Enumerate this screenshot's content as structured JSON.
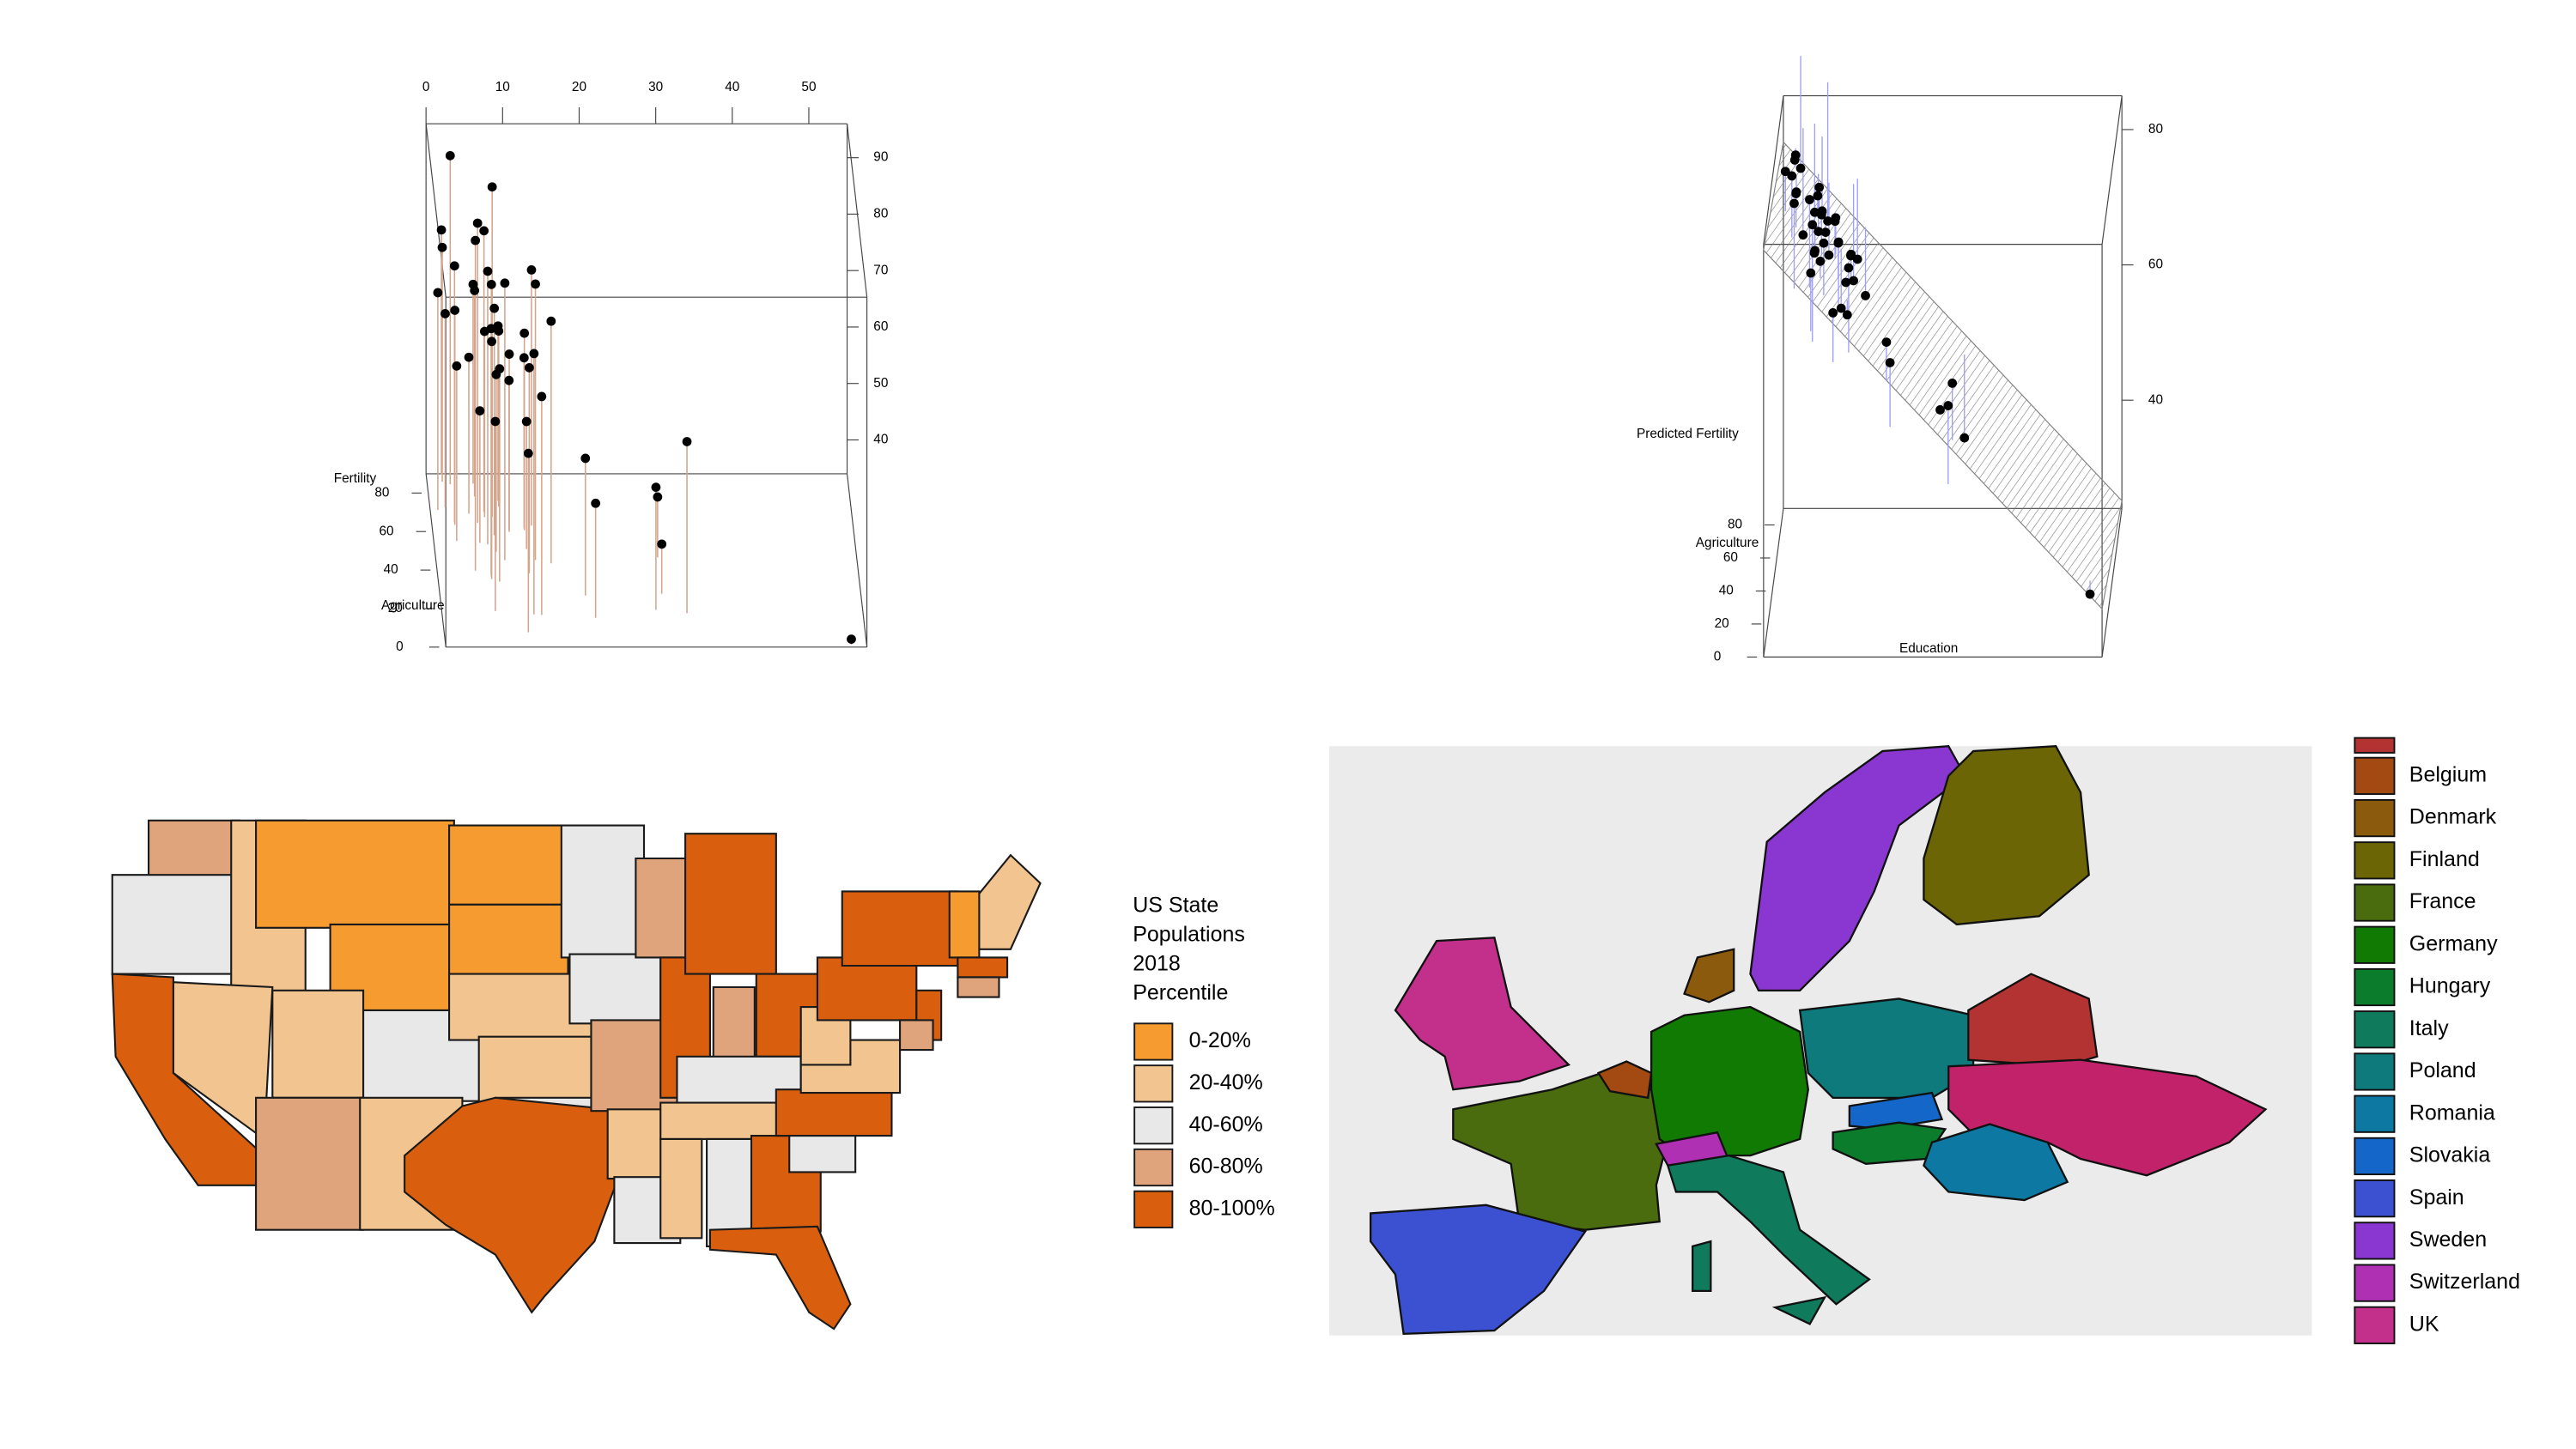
{
  "chart_data": [
    {
      "type": "scatter3d",
      "zlabel": "Fertility",
      "ylabel": "Agriculture",
      "x": [
        12,
        9,
        5,
        7,
        15,
        7,
        7,
        8,
        7,
        13,
        6,
        12,
        7,
        12,
        5,
        2,
        8,
        28,
        20,
        9,
        10,
        3,
        12,
        6,
        1,
        8,
        3,
        10,
        19,
        8,
        2,
        6,
        2,
        6,
        3,
        9,
        3,
        13,
        12,
        11,
        13,
        32,
        7,
        7,
        53,
        29,
        29
      ],
      "y": [
        17,
        45.1,
        39.7,
        36.5,
        43.5,
        35.3,
        70.2,
        67.8,
        53.3,
        45.2,
        64.5,
        62,
        67.5,
        60.7,
        69.3,
        72.6,
        34,
        19.4,
        15.2,
        73,
        59.8,
        55.1,
        50.9,
        54.1,
        71.2,
        58.1,
        63.5,
        60.8,
        26.8,
        49.5,
        85.9,
        84.9,
        89.7,
        78.2,
        64.9,
        75.9,
        84.6,
        63.1,
        38.4,
        7.7,
        16.7,
        17.6,
        37.6,
        18.7,
        1.2,
        46.6,
        27.7
      ],
      "z": [
        80.2,
        83.1,
        92.5,
        85.8,
        76.9,
        76.1,
        83.8,
        92.4,
        82.4,
        82.9,
        87.1,
        64.1,
        66.9,
        68.9,
        61.7,
        68.3,
        71.7,
        55.7,
        54.3,
        65.1,
        65.5,
        65,
        56.6,
        57.4,
        72.5,
        74.2,
        72,
        60.5,
        58.3,
        65.4,
        75.5,
        69.3,
        77.3,
        70.5,
        79.4,
        65,
        92.2,
        79.3,
        70.4,
        65.7,
        72.7,
        64.4,
        77.6,
        67.6,
        35,
        44.7,
        42.8
      ],
      "xlim": [
        0,
        55
      ],
      "ylim": [
        0,
        90
      ],
      "zlim": [
        34,
        96
      ],
      "xticks": [
        0,
        10,
        20,
        30,
        40,
        50
      ],
      "yticks": [
        0,
        20,
        40,
        60,
        80
      ],
      "zticks": [
        40,
        50,
        60,
        70,
        80,
        90
      ],
      "color": "#000000",
      "line_color": "#d4a48c"
    },
    {
      "type": "scatter3d-plane",
      "xlabel": "Education",
      "ylabel": "Agriculture",
      "zlabel": "Predicted Fertility",
      "x": [
        12,
        9,
        5,
        7,
        15,
        7,
        7,
        8,
        7,
        13,
        6,
        12,
        7,
        12,
        5,
        2,
        8,
        28,
        20,
        9,
        10,
        3,
        12,
        6,
        1,
        8,
        3,
        10,
        19,
        8,
        2,
        6,
        2,
        6,
        3,
        9,
        3,
        13,
        12,
        11,
        13,
        32,
        7,
        7,
        53,
        29,
        29
      ],
      "y": [
        17,
        45.1,
        39.7,
        36.5,
        43.5,
        35.3,
        70.2,
        67.8,
        53.3,
        45.2,
        64.5,
        62,
        67.5,
        60.7,
        69.3,
        72.6,
        34,
        19.4,
        15.2,
        73,
        59.8,
        55.1,
        50.9,
        54.1,
        71.2,
        58.1,
        63.5,
        60.8,
        26.8,
        49.5,
        85.9,
        84.9,
        89.7,
        78.2,
        64.9,
        75.9,
        84.6,
        63.1,
        38.4,
        7.7,
        16.7,
        17.6,
        37.6,
        18.7,
        1.2,
        46.6,
        27.7
      ],
      "z": [
        71.4,
        72.4,
        76.7,
        75,
        66.8,
        75.1,
        72.8,
        71.9,
        73.9,
        68.6,
        74,
        68.4,
        72.9,
        68.5,
        74.7,
        77.4,
        74.2,
        55.8,
        63.8,
        70.6,
        70.6,
        77.6,
        69.1,
        74.7,
        78.4,
        72.6,
        77,
        70.5,
        64,
        73.1,
        76.5,
        72.7,
        76.3,
        73.1,
        76.9,
        70.4,
        75.6,
        67.4,
        70,
        73,
        70.5,
        52.1,
        74.9,
        76.2,
        33,
        53.1,
        54.4
      ],
      "xlim": [
        0,
        55
      ],
      "ylim": [
        0,
        90
      ],
      "zlim": [
        24,
        85
      ],
      "yticks": [
        0,
        20,
        40,
        60,
        80
      ],
      "zticks": [
        40,
        60,
        80
      ],
      "color": "#000000",
      "line_color": "#9f9ff5",
      "plane_color": "#808080"
    },
    {
      "type": "choropleth",
      "title_lines": [
        "US State",
        "Populations",
        "2018",
        "Percentile"
      ],
      "legend": [
        {
          "label": "0-20%",
          "color": "#f59b30"
        },
        {
          "label": "20-40%",
          "color": "#f2c48f"
        },
        {
          "label": "40-60%",
          "color": "#e8e8e8"
        },
        {
          "label": "60-80%",
          "color": "#e0a47c"
        },
        {
          "label": "80-100%",
          "color": "#d95f0e"
        }
      ]
    },
    {
      "type": "choropleth",
      "background": "#ebebeb",
      "legend": [
        {
          "label": "Belgium",
          "color": "#a34a12"
        },
        {
          "label": "Denmark",
          "color": "#8b5a0c"
        },
        {
          "label": "Finland",
          "color": "#6b6505"
        },
        {
          "label": "France",
          "color": "#4b6c0e"
        },
        {
          "label": "Germany",
          "color": "#117a02"
        },
        {
          "label": "Hungary",
          "color": "#0b7b2c"
        },
        {
          "label": "Italy",
          "color": "#0f7b5c"
        },
        {
          "label": "Poland",
          "color": "#0e7a7c"
        },
        {
          "label": "Romania",
          "color": "#0d79a2"
        },
        {
          "label": "Slovakia",
          "color": "#1466c9"
        },
        {
          "label": "Spain",
          "color": "#3b51d1"
        },
        {
          "label": "Sweden",
          "color": "#8a36d0"
        },
        {
          "label": "Switzerland",
          "color": "#b030b4"
        },
        {
          "label": "UK",
          "color": "#c2308c"
        }
      ]
    }
  ]
}
